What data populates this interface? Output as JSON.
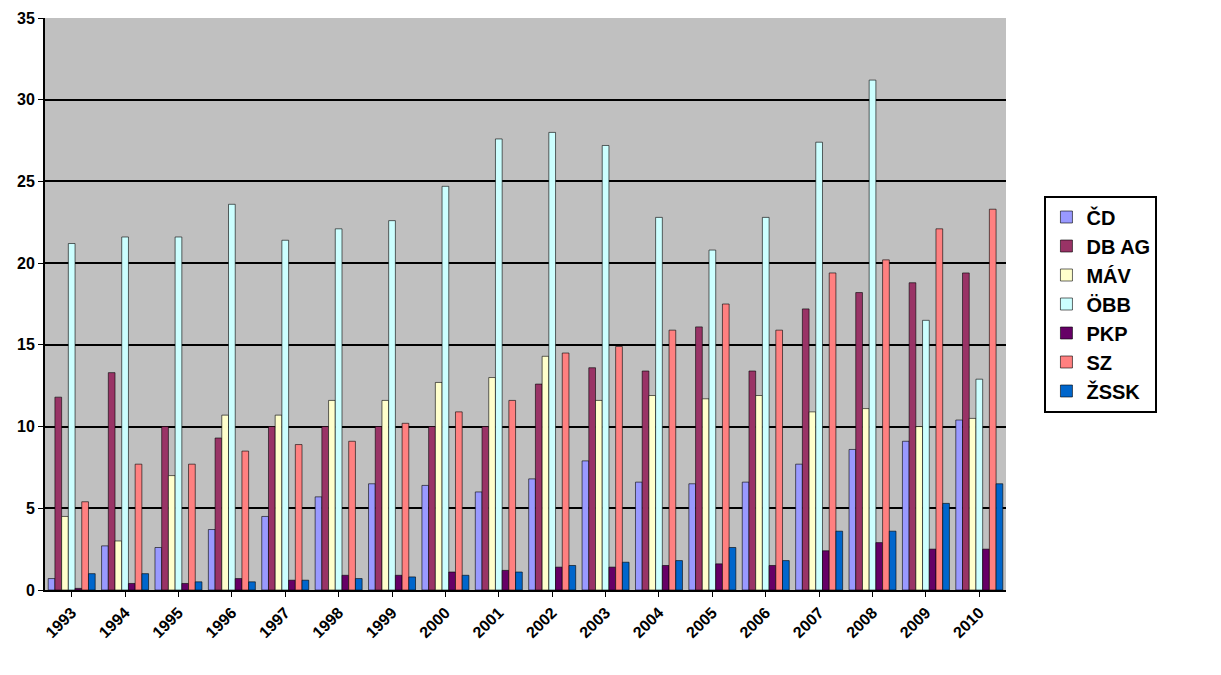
{
  "chart_data": {
    "type": "bar",
    "categories": [
      "1993",
      "1994",
      "1995",
      "1996",
      "1997",
      "1998",
      "1999",
      "2000",
      "2001",
      "2002",
      "2003",
      "2004",
      "2005",
      "2006",
      "2007",
      "2008",
      "2009",
      "2010"
    ],
    "series": [
      {
        "name": "ČD",
        "color": "#9999FF",
        "values": [
          0.7,
          2.7,
          2.6,
          3.7,
          4.5,
          5.7,
          6.5,
          6.4,
          6.0,
          6.8,
          7.9,
          6.6,
          6.5,
          6.6,
          7.7,
          8.6,
          9.1,
          10.4
        ]
      },
      {
        "name": "DB AG",
        "color": "#993366",
        "values": [
          11.8,
          13.3,
          10.0,
          9.3,
          10.0,
          10.0,
          10.0,
          10.0,
          10.0,
          12.6,
          13.6,
          13.4,
          16.1,
          13.4,
          17.2,
          18.2,
          18.8,
          19.4
        ]
      },
      {
        "name": "MÁV",
        "color": "#FFFFCC",
        "values": [
          4.5,
          3.0,
          7.0,
          10.7,
          10.7,
          11.6,
          11.6,
          12.7,
          13.0,
          14.3,
          11.6,
          11.9,
          11.7,
          11.9,
          10.9,
          11.1,
          10.0,
          10.5
        ]
      },
      {
        "name": "ÖBB",
        "color": "#CCFFFF",
        "values": [
          21.2,
          21.6,
          21.6,
          23.6,
          21.4,
          22.1,
          22.6,
          24.7,
          27.6,
          28.0,
          27.2,
          22.8,
          20.8,
          22.8,
          27.4,
          31.2,
          16.5,
          12.9
        ]
      },
      {
        "name": "PKP",
        "color": "#660066",
        "values": [
          0.1,
          0.4,
          0.4,
          0.7,
          0.6,
          0.9,
          0.9,
          1.1,
          1.2,
          1.4,
          1.4,
          1.5,
          1.6,
          1.5,
          2.4,
          2.9,
          2.5,
          2.5
        ]
      },
      {
        "name": "SZ",
        "color": "#FF8080",
        "values": [
          5.4,
          7.7,
          7.7,
          8.5,
          8.9,
          9.1,
          10.2,
          10.9,
          11.6,
          14.5,
          14.9,
          15.9,
          17.5,
          15.9,
          19.4,
          20.2,
          22.1,
          23.3
        ]
      },
      {
        "name": "ŽSSK",
        "color": "#0066CC",
        "values": [
          1.0,
          1.0,
          0.5,
          0.5,
          0.6,
          0.7,
          0.8,
          0.9,
          1.1,
          1.5,
          1.7,
          1.8,
          2.6,
          1.8,
          3.6,
          3.6,
          5.3,
          6.5
        ]
      }
    ],
    "ylim": [
      0,
      35
    ],
    "yticks": [
      0,
      5,
      10,
      15,
      20,
      25,
      30,
      35
    ],
    "grid": true,
    "legend": "right"
  }
}
